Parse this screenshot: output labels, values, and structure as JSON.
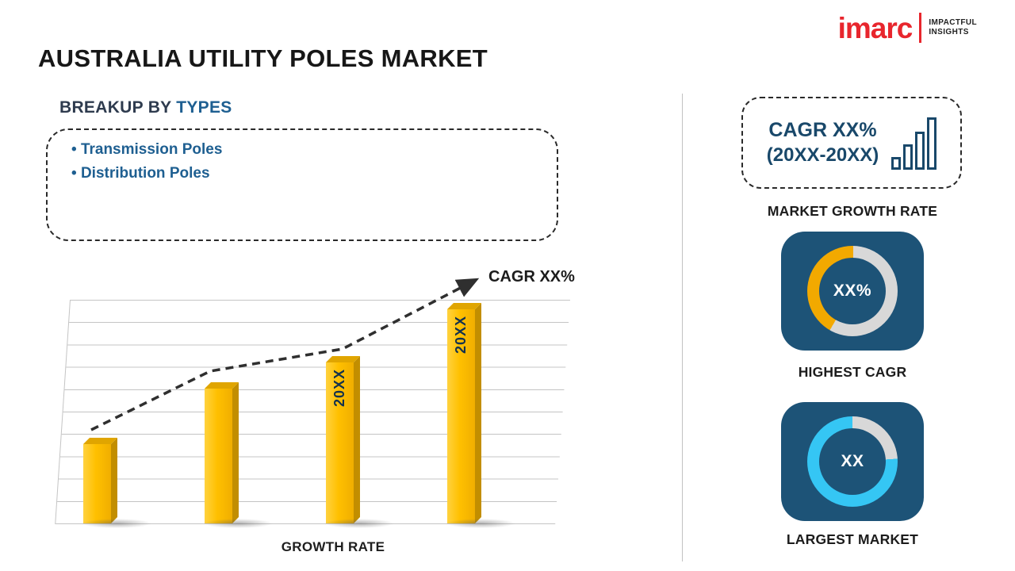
{
  "header": {
    "title": "AUSTRALIA UTILITY POLES MARKET",
    "logo": {
      "brand": "imarc",
      "tagline_line1": "IMPACTFUL",
      "tagline_line2": "INSIGHTS"
    }
  },
  "breakup": {
    "heading_prefix": "BREAKUP BY ",
    "heading_highlight": "TYPES",
    "items": [
      "Transmission Poles",
      "Distribution Poles"
    ]
  },
  "chart_data": {
    "type": "bar",
    "title": "",
    "xlabel": "GROWTH RATE",
    "ylabel": "",
    "categories": [
      "",
      "",
      "20XX",
      "20XX"
    ],
    "values": [
      37,
      63,
      75,
      100
    ],
    "ylim": [
      0,
      100
    ],
    "grid": true,
    "bar_color": "#FFC000",
    "trend_label": "CAGR XX%"
  },
  "sidebar": {
    "growth_box": {
      "line1": "CAGR XX%",
      "line2": "(20XX-20XX)"
    },
    "growth_caption": "MARKET GROWTH RATE",
    "highest_cagr": {
      "value": "XX%",
      "caption": "HIGHEST CAGR"
    },
    "largest_market": {
      "value": "XX",
      "caption": "LARGEST MARKET"
    }
  },
  "colors": {
    "accent_blue": "#1E5F91",
    "dark_blue_text": "#19486A",
    "card_bg": "#1D5377",
    "bar_yellow": "#FFC000",
    "bar_side": "#C28E00",
    "bar_top": "#E0A500",
    "donut_yellow": "#F2A900",
    "donut_cyan": "#35C6F4",
    "donut_gray": "#D8D8D8",
    "logo_red": "#E8262D",
    "grid_gray": "#C4C4C4"
  }
}
